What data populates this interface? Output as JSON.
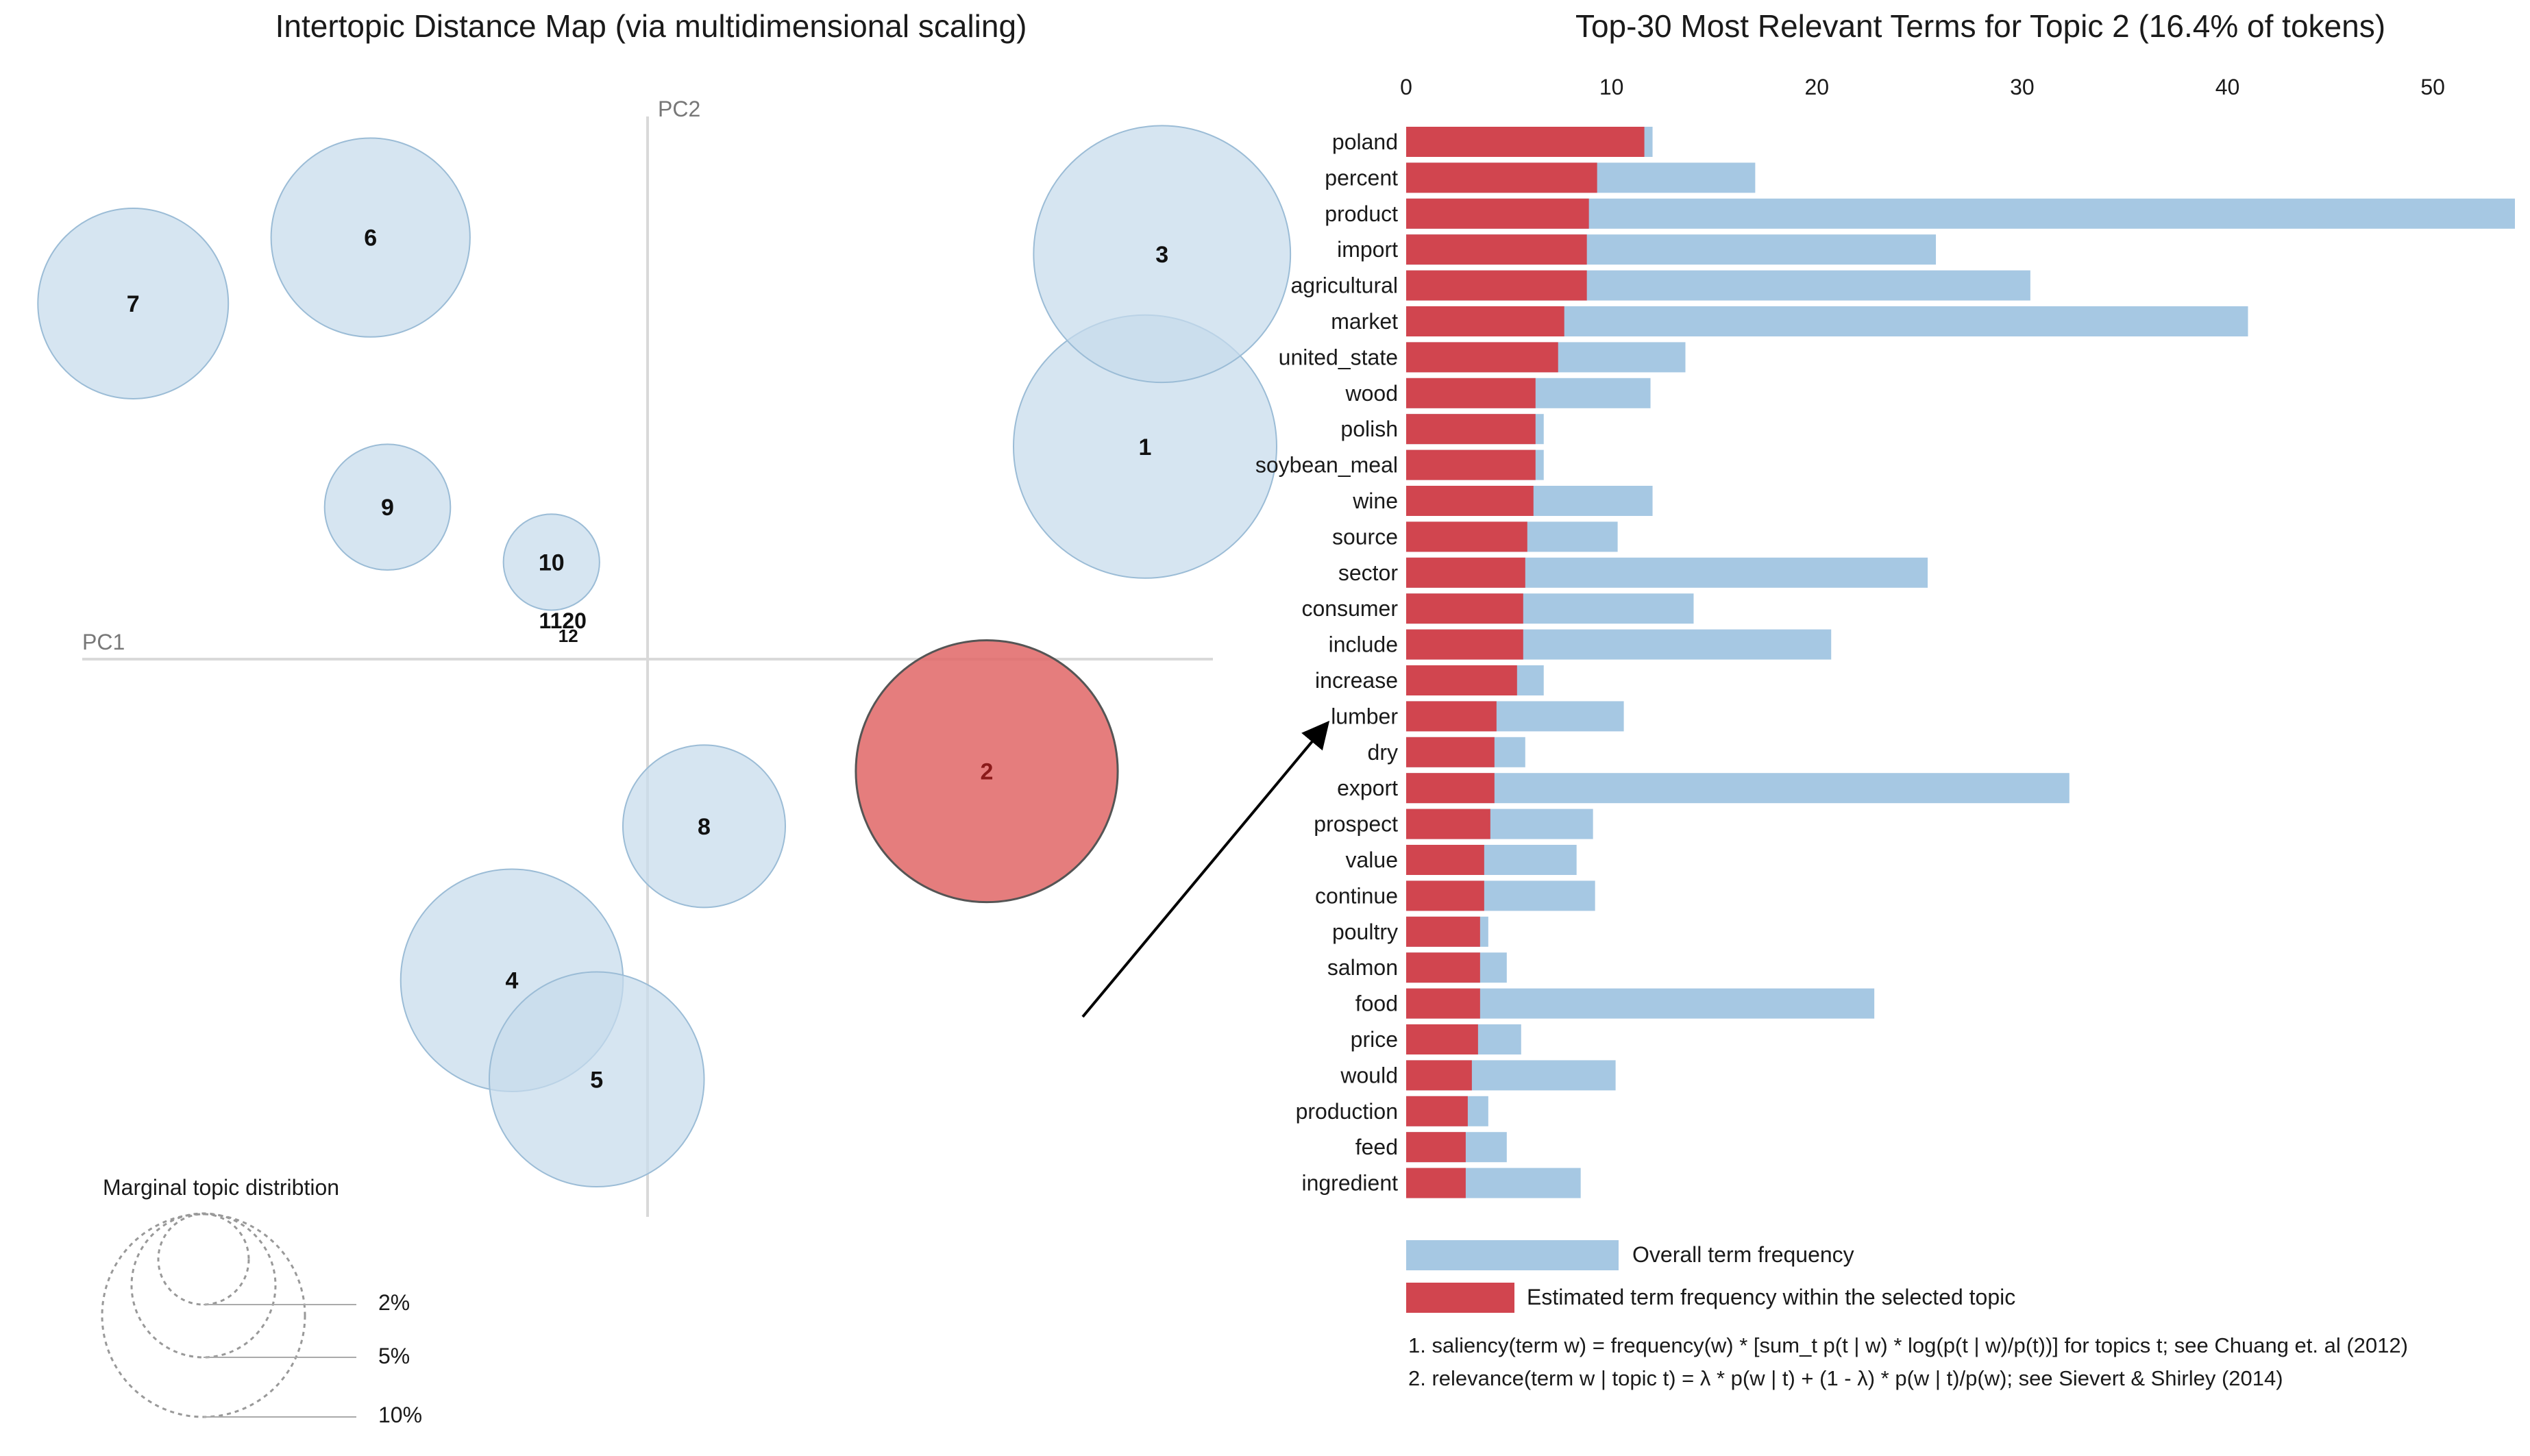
{
  "colors": {
    "bubble_fill": "#c6dbeb",
    "bubble_stroke": "#9bbcd6",
    "selected_fill": "#e06666",
    "selected_stroke": "#555555",
    "overall_bar": "#a6c8e3",
    "topic_bar": "#d1454f",
    "axis_line": "#d9d9d9",
    "text": "#1a1a1a"
  },
  "chart_data": [
    {
      "type": "scatter",
      "title": "Intertopic Distance Map (via multidimensional scaling)",
      "xlabel": "PC1",
      "ylabel": "PC2",
      "xlim": [
        -1,
        1
      ],
      "ylim": [
        -1,
        1
      ],
      "selected_topic": "2",
      "topics": [
        {
          "id": "1",
          "pc1": 0.88,
          "pc2": 0.4,
          "size": 10.5
        },
        {
          "id": "2",
          "pc1": 0.6,
          "pc2": -0.19,
          "size": 10.4
        },
        {
          "id": "3",
          "pc1": 0.91,
          "pc2": 0.75,
          "size": 10.0
        },
        {
          "id": "4",
          "pc1": -0.24,
          "pc2": -0.57,
          "size": 7.5
        },
        {
          "id": "5",
          "pc1": -0.09,
          "pc2": -0.75,
          "size": 7.0
        },
        {
          "id": "6",
          "pc1": -0.49,
          "pc2": 0.78,
          "size": 6.0
        },
        {
          "id": "7",
          "pc1": -0.91,
          "pc2": 0.66,
          "size": 5.5
        },
        {
          "id": "8",
          "pc1": 0.1,
          "pc2": -0.29,
          "size": 4.0
        },
        {
          "id": "9",
          "pc1": -0.46,
          "pc2": 0.29,
          "size": 2.4
        },
        {
          "id": "10",
          "pc1": -0.17,
          "pc2": 0.19,
          "size": 1.4
        }
      ],
      "cluster_label": "1120",
      "cluster_sublabel": "12",
      "cluster_pc1": -0.15,
      "cluster_pc2": 0.07,
      "legend": {
        "title": "Marginal topic distribtion",
        "items": [
          {
            "label": "2%",
            "value": 2
          },
          {
            "label": "5%",
            "value": 5
          },
          {
            "label": "10%",
            "value": 10
          }
        ]
      }
    },
    {
      "type": "bar",
      "orientation": "horizontal",
      "title": "Top-30 Most Relevant Terms for Topic 2 (16.4% of tokens)",
      "xlim": [
        0,
        54
      ],
      "xticks": [
        0,
        10,
        20,
        30,
        40,
        50
      ],
      "categories": [
        "poland",
        "percent",
        "product",
        "import",
        "agricultural",
        "market",
        "united_state",
        "wood",
        "polish",
        "soybean_meal",
        "wine",
        "source",
        "sector",
        "consumer",
        "include",
        "increase",
        "lumber",
        "dry",
        "export",
        "prospect",
        "value",
        "continue",
        "poultry",
        "salmon",
        "food",
        "price",
        "would",
        "production",
        "feed",
        "ingredient"
      ],
      "series": [
        {
          "name": "Overall term frequency",
          "values": [
            12.0,
            17.0,
            54.0,
            25.8,
            30.4,
            41.0,
            13.6,
            11.9,
            6.7,
            6.7,
            12.0,
            10.3,
            25.4,
            14.0,
            20.7,
            6.7,
            10.6,
            5.8,
            32.3,
            9.1,
            8.3,
            9.2,
            4.0,
            4.9,
            22.8,
            5.6,
            10.2,
            4.0,
            4.9,
            8.5
          ]
        },
        {
          "name": "Estimated term frequency within the selected topic",
          "values": [
            11.6,
            9.3,
            8.9,
            8.8,
            8.8,
            7.7,
            7.4,
            6.3,
            6.3,
            6.3,
            6.2,
            5.9,
            5.8,
            5.7,
            5.7,
            5.4,
            4.4,
            4.3,
            4.3,
            4.1,
            3.8,
            3.8,
            3.6,
            3.6,
            3.6,
            3.5,
            3.2,
            3.0,
            2.9,
            2.9
          ]
        }
      ],
      "legend": {
        "overall": "Overall term frequency",
        "topic": "Estimated term frequency within the selected topic"
      },
      "footnotes": [
        "1. saliency(term w) = frequency(w) * [sum_t p(t | w) * log(p(t | w)/p(t))] for topics t; see Chuang et. al (2012)",
        "2. relevance(term w | topic t) = λ * p(w | t) + (1 - λ) * p(w | t)/p(w); see Sievert & Shirley (2014)"
      ]
    }
  ]
}
